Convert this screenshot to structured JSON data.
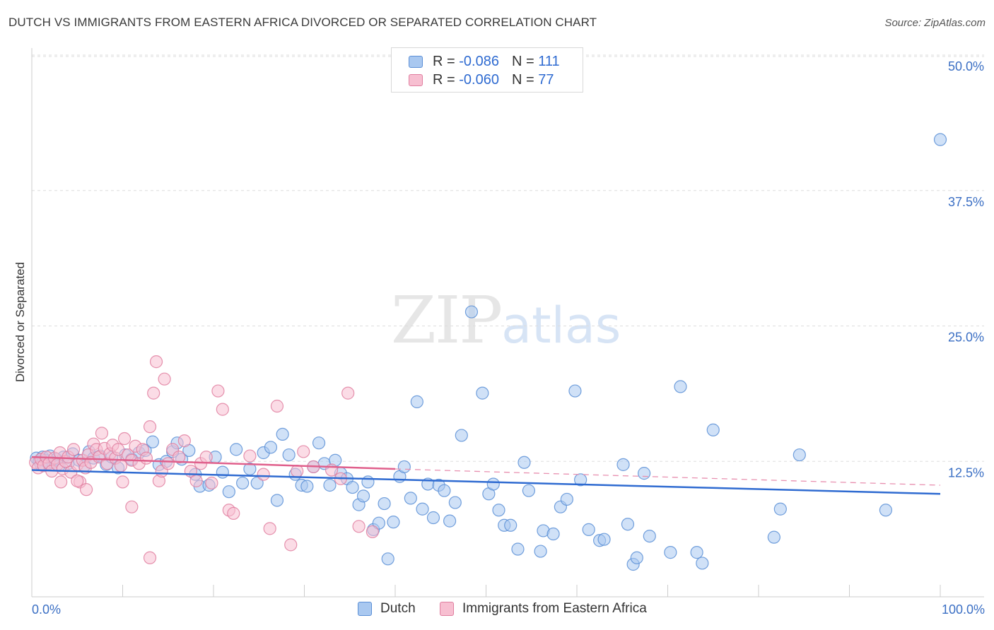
{
  "title": "DUTCH VS IMMIGRANTS FROM EASTERN AFRICA DIVORCED OR SEPARATED CORRELATION CHART",
  "source": "Source: ZipAtlas.com",
  "watermark": {
    "zip": "ZIP",
    "atlas": "atlas"
  },
  "legend": {
    "rows": [
      {
        "r_label": "R = ",
        "r_value": "-0.086",
        "n_label": "N = ",
        "n_value": "111",
        "color": "#a9c8f0",
        "border": "#5b8fd6"
      },
      {
        "r_label": "R = ",
        "r_value": "-0.060",
        "n_label": "N = ",
        "n_value": "77",
        "color": "#f7bfd1",
        "border": "#e07fa0"
      }
    ]
  },
  "bottom_legend": [
    {
      "label": "Dutch",
      "color": "#a9c8f0",
      "border": "#5b8fd6"
    },
    {
      "label": "Immigrants from Eastern Africa",
      "color": "#f7bfd1",
      "border": "#e07fa0"
    }
  ],
  "chart_data": {
    "type": "scatter",
    "title": "DUTCH VS IMMIGRANTS FROM EASTERN AFRICA DIVORCED OR SEPARATED CORRELATION CHART",
    "xlabel": "",
    "ylabel": "Divorced or Separated",
    "xlim": [
      0,
      100
    ],
    "ylim": [
      0,
      50
    ],
    "x_tick_labels": [
      "0.0%",
      "100.0%"
    ],
    "y_ticks": [
      12.5,
      25.0,
      37.5,
      50.0
    ],
    "y_tick_labels": [
      "12.5%",
      "25.0%",
      "37.5%",
      "50.0%"
    ],
    "grid": true,
    "legend_position": "top-center",
    "series": [
      {
        "name": "Dutch",
        "color": "#5b8fd6",
        "fill": "#a9c8f0",
        "trend": {
          "x": [
            0,
            100
          ],
          "y": [
            11.7,
            9.5
          ],
          "style": "solid"
        },
        "points": [
          [
            0.5,
            12.8
          ],
          [
            0.8,
            12.5
          ],
          [
            1.0,
            12.2
          ],
          [
            1.2,
            12.9
          ],
          [
            1.5,
            12.6
          ],
          [
            1.8,
            12.3
          ],
          [
            2.0,
            13.0
          ],
          [
            2.3,
            12.4
          ],
          [
            2.7,
            12.7
          ],
          [
            3.0,
            12.1
          ],
          [
            3.5,
            12.9
          ],
          [
            4.0,
            12.3
          ],
          [
            4.5,
            13.2
          ],
          [
            5.2,
            12.6
          ],
          [
            5.8,
            12.1
          ],
          [
            6.3,
            13.4
          ],
          [
            6.8,
            12.8
          ],
          [
            7.5,
            13.0
          ],
          [
            8.2,
            12.2
          ],
          [
            8.8,
            12.9
          ],
          [
            9.5,
            11.9
          ],
          [
            10.3,
            13.1
          ],
          [
            11.0,
            12.7
          ],
          [
            11.8,
            13.3
          ],
          [
            12.5,
            13.5
          ],
          [
            13.3,
            14.3
          ],
          [
            14.0,
            12.2
          ],
          [
            14.8,
            12.5
          ],
          [
            15.5,
            13.4
          ],
          [
            16.0,
            14.2
          ],
          [
            16.5,
            12.7
          ],
          [
            17.3,
            13.5
          ],
          [
            18.0,
            11.3
          ],
          [
            18.5,
            10.2
          ],
          [
            19.5,
            10.3
          ],
          [
            20.2,
            12.9
          ],
          [
            21.0,
            11.5
          ],
          [
            21.7,
            9.7
          ],
          [
            22.5,
            13.6
          ],
          [
            23.2,
            10.5
          ],
          [
            24.0,
            11.8
          ],
          [
            24.8,
            10.5
          ],
          [
            25.5,
            13.3
          ],
          [
            26.3,
            13.8
          ],
          [
            27.0,
            8.9
          ],
          [
            27.6,
            15.0
          ],
          [
            28.3,
            13.1
          ],
          [
            29.0,
            11.3
          ],
          [
            29.7,
            10.3
          ],
          [
            30.3,
            10.2
          ],
          [
            31.0,
            12.0
          ],
          [
            31.6,
            14.2
          ],
          [
            32.2,
            12.3
          ],
          [
            32.8,
            10.3
          ],
          [
            33.4,
            12.6
          ],
          [
            34.0,
            11.4
          ],
          [
            34.7,
            10.9
          ],
          [
            35.3,
            10.1
          ],
          [
            36.0,
            8.5
          ],
          [
            36.5,
            9.3
          ],
          [
            37.0,
            10.6
          ],
          [
            37.6,
            6.2
          ],
          [
            38.2,
            6.8
          ],
          [
            38.8,
            8.6
          ],
          [
            39.2,
            3.5
          ],
          [
            39.8,
            6.9
          ],
          [
            40.5,
            11.1
          ],
          [
            41.0,
            12.0
          ],
          [
            41.7,
            9.1
          ],
          [
            42.4,
            18.0
          ],
          [
            43.0,
            8.1
          ],
          [
            43.6,
            10.4
          ],
          [
            44.2,
            7.3
          ],
          [
            44.8,
            10.3
          ],
          [
            45.4,
            9.8
          ],
          [
            46.0,
            7.0
          ],
          [
            46.6,
            8.7
          ],
          [
            47.3,
            14.9
          ],
          [
            48.4,
            26.3
          ],
          [
            49.6,
            18.8
          ],
          [
            50.3,
            9.5
          ],
          [
            50.8,
            10.4
          ],
          [
            51.4,
            8.0
          ],
          [
            52.0,
            6.6
          ],
          [
            52.7,
            6.6
          ],
          [
            53.5,
            4.4
          ],
          [
            54.2,
            12.4
          ],
          [
            54.7,
            9.8
          ],
          [
            56.0,
            4.2
          ],
          [
            56.3,
            6.1
          ],
          [
            57.4,
            5.8
          ],
          [
            58.2,
            8.3
          ],
          [
            58.9,
            9.0
          ],
          [
            59.8,
            19.0
          ],
          [
            60.4,
            10.8
          ],
          [
            61.3,
            6.2
          ],
          [
            62.5,
            5.2
          ],
          [
            63.0,
            5.3
          ],
          [
            65.1,
            12.2
          ],
          [
            65.6,
            6.7
          ],
          [
            66.2,
            3.0
          ],
          [
            66.6,
            3.6
          ],
          [
            67.4,
            11.4
          ],
          [
            68.0,
            5.6
          ],
          [
            70.3,
            4.1
          ],
          [
            71.4,
            19.4
          ],
          [
            73.2,
            4.1
          ],
          [
            73.8,
            3.1
          ],
          [
            75.0,
            15.4
          ],
          [
            84.5,
            13.1
          ],
          [
            94.0,
            8.0
          ],
          [
            81.7,
            5.5
          ],
          [
            82.4,
            8.1
          ],
          [
            100.0,
            42.2
          ]
        ]
      },
      {
        "name": "Immigrants from Eastern Africa",
        "color": "#e07fa0",
        "fill": "#f7bfd1",
        "trend": {
          "x": [
            0,
            40
          ],
          "y": [
            12.9,
            11.8
          ],
          "style": "solid",
          "extension_x": [
            40,
            100
          ],
          "extension_y": [
            11.8,
            10.3
          ],
          "extension_style": "dashed"
        },
        "points": [
          [
            0.4,
            12.4
          ],
          [
            0.7,
            11.9
          ],
          [
            1.0,
            12.7
          ],
          [
            1.3,
            12.1
          ],
          [
            1.6,
            12.9
          ],
          [
            1.9,
            12.3
          ],
          [
            2.2,
            11.6
          ],
          [
            2.5,
            12.8
          ],
          [
            2.8,
            12.2
          ],
          [
            3.1,
            13.3
          ],
          [
            3.4,
            11.8
          ],
          [
            3.7,
            12.5
          ],
          [
            4.0,
            12.9
          ],
          [
            4.3,
            11.5
          ],
          [
            4.6,
            13.6
          ],
          [
            5.0,
            12.2
          ],
          [
            5.3,
            10.6
          ],
          [
            5.6,
            12.6
          ],
          [
            5.9,
            11.9
          ],
          [
            6.2,
            13.1
          ],
          [
            6.5,
            12.4
          ],
          [
            6.8,
            14.1
          ],
          [
            7.1,
            13.6
          ],
          [
            7.4,
            12.9
          ],
          [
            7.7,
            15.1
          ],
          [
            8.0,
            13.7
          ],
          [
            8.3,
            12.3
          ],
          [
            8.6,
            13.2
          ],
          [
            8.9,
            14.0
          ],
          [
            9.2,
            12.8
          ],
          [
            9.5,
            13.6
          ],
          [
            9.8,
            12.1
          ],
          [
            10.2,
            14.6
          ],
          [
            10.6,
            13.1
          ],
          [
            11.0,
            12.6
          ],
          [
            11.4,
            13.9
          ],
          [
            11.8,
            12.3
          ],
          [
            12.2,
            13.6
          ],
          [
            12.6,
            12.8
          ],
          [
            13.0,
            15.7
          ],
          [
            13.4,
            18.8
          ],
          [
            13.7,
            21.7
          ],
          [
            14.0,
            10.7
          ],
          [
            14.3,
            11.6
          ],
          [
            14.6,
            20.1
          ],
          [
            15.0,
            12.3
          ],
          [
            15.5,
            13.6
          ],
          [
            16.2,
            12.9
          ],
          [
            16.8,
            14.4
          ],
          [
            17.5,
            11.6
          ],
          [
            18.1,
            10.7
          ],
          [
            18.6,
            12.3
          ],
          [
            19.2,
            12.9
          ],
          [
            19.8,
            10.5
          ],
          [
            20.5,
            19.0
          ],
          [
            21.0,
            17.3
          ],
          [
            21.7,
            8.0
          ],
          [
            22.2,
            7.7
          ],
          [
            24.0,
            13.0
          ],
          [
            25.5,
            11.3
          ],
          [
            26.2,
            6.3
          ],
          [
            27.0,
            17.6
          ],
          [
            28.5,
            4.8
          ],
          [
            29.2,
            11.6
          ],
          [
            29.9,
            13.4
          ],
          [
            31.0,
            12.0
          ],
          [
            33.0,
            11.7
          ],
          [
            34.0,
            10.9
          ],
          [
            36.0,
            6.5
          ],
          [
            37.5,
            6.0
          ],
          [
            3.2,
            10.6
          ],
          [
            5.0,
            10.7
          ],
          [
            6.0,
            9.9
          ],
          [
            10.0,
            10.6
          ],
          [
            11.0,
            8.3
          ],
          [
            13.0,
            3.6
          ],
          [
            34.8,
            18.8
          ]
        ]
      }
    ]
  }
}
